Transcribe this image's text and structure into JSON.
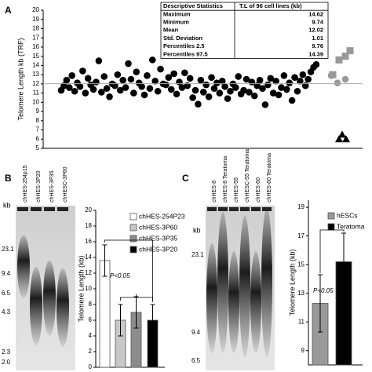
{
  "chart_data": [
    {
      "type": "strip",
      "panel": "A",
      "y_label": "Telomere Length kb (TRF)",
      "ylim": [
        5,
        20
      ],
      "yticks": [
        5,
        6,
        7,
        8,
        9,
        10,
        11,
        12,
        13,
        14,
        15,
        16,
        17,
        18,
        19,
        20
      ],
      "series": [
        {
          "color": "#000000",
          "marker": "circle",
          "values": [
            11.3,
            11.8,
            12.4,
            11.6,
            12.9,
            11.2,
            12.1,
            11.7,
            13.4,
            11.0,
            12.6,
            11.9,
            11.4,
            12.2,
            14.5,
            11.1,
            12.8,
            11.5,
            10.6,
            12.0,
            11.8,
            13.0,
            11.3,
            12.4,
            11.6,
            14.2,
            12.5,
            11.0,
            13.3,
            12.1,
            11.7,
            10.8,
            12.9,
            11.5,
            14.6,
            12.3,
            11.2,
            13.6,
            12.0,
            11.9,
            12.7,
            11.4,
            13.1,
            10.9,
            12.2,
            11.6,
            13.2,
            11.8,
            12.6,
            10.5,
            11.3,
            9.8,
            12.4,
            11.1,
            11.9,
            10.6,
            12.7,
            11.5,
            12.1,
            11.0,
            12.3,
            11.7,
            10.4,
            11.2,
            12.0,
            11.6,
            12.8,
            10.9,
            11.3,
            12.5,
            11.1,
            12.2,
            10.7,
            11.8,
            12.4,
            11.5,
            9.74,
            11.9,
            12.6,
            11.0,
            12.3,
            10.8,
            11.6,
            12.9,
            11.4,
            12.1,
            10.2,
            12.7,
            11.2,
            12.3,
            13.0,
            11.8,
            12.5,
            13.3,
            13.8,
            14.1
          ]
        },
        {
          "color": "#999999",
          "marker": "square",
          "values": [
            13.0,
            14.6,
            15.0,
            15.6
          ]
        },
        {
          "color": "#999999",
          "marker": "circle",
          "values": [
            12.9,
            12.1,
            12.5
          ]
        },
        {
          "color": "#000000",
          "marker": "triangle",
          "values": [
            6.5,
            6.0,
            6.0
          ]
        }
      ],
      "table": {
        "header": [
          "Descriptive Statistics",
          "T.L of 96 cell lines (kb)"
        ],
        "rows": [
          [
            "Maximum",
            14.62
          ],
          [
            "Minimum",
            9.74
          ],
          [
            "Mean",
            12.02
          ],
          [
            "Std. Deviation",
            1.01
          ],
          [
            "Percentiles 2.5",
            9.76
          ],
          [
            "Percentiles 97.5",
            14.39
          ]
        ]
      }
    },
    {
      "type": "bar",
      "panel": "B",
      "y_label": "Telomere Length (kb)",
      "categories": [
        "chHES-254P23",
        "chHES-3P60",
        "chHES-3P35",
        "chHES-3P20"
      ],
      "colors": [
        "#ffffff",
        "#c8c8c8",
        "#8c8c8c",
        "#000000"
      ],
      "values": [
        13.6,
        6.0,
        7.0,
        6.0
      ],
      "errors": [
        2.0,
        2.0,
        2.0,
        2.0
      ],
      "ylim": [
        0,
        20
      ],
      "yticks": [
        0,
        2,
        4,
        6,
        8,
        10,
        12,
        14,
        16,
        18,
        20
      ],
      "annotation": "P<0.05",
      "gel": {
        "unit": "kb",
        "markers": [
          "23.1",
          "9.4",
          "6.5",
          "4.3",
          "2.3",
          "2.0"
        ],
        "lanes": [
          "chHES-254p15",
          "chHES-3P20",
          "chHES-3P35",
          "chHESC-3P60"
        ]
      }
    },
    {
      "type": "bar",
      "panel": "C",
      "y_label": "Telomere Length (kb)",
      "categories": [
        "hESCs",
        "Teratoma"
      ],
      "colors": [
        "#999999",
        "#000000"
      ],
      "values": [
        12.3,
        15.2
      ],
      "errors": [
        2.0,
        2.0
      ],
      "ylim": [
        8,
        19.5
      ],
      "yticks": [
        9,
        11,
        13,
        15,
        17,
        19
      ],
      "annotation": "P<0.05",
      "gel": {
        "unit": "kb",
        "markers": [
          "23.1",
          "9.4",
          "6.5"
        ],
        "lanes": [
          "chHES-8",
          "chHES-8 Teratoma",
          "chHES-55",
          "chHESC-55 Teratoma",
          "chHES-60",
          "chHES-60 Teratoma"
        ]
      }
    }
  ]
}
